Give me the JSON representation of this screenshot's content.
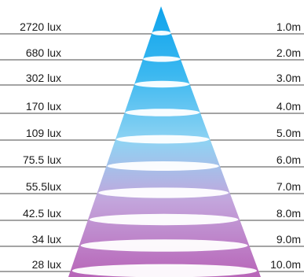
{
  "rows": [
    {
      "lux": "2720 lux",
      "distance": "1.0m"
    },
    {
      "lux": "680 lux",
      "distance": "2.0m"
    },
    {
      "lux": "302 lux",
      "distance": "3.0m"
    },
    {
      "lux": "170 lux",
      "distance": "4.0m"
    },
    {
      "lux": "109 lux",
      "distance": "5.0m"
    },
    {
      "lux": "75.5 lux",
      "distance": "6.0m"
    },
    {
      "lux": "55.5lux",
      "distance": "7.0m"
    },
    {
      "lux": "42.5 lux",
      "distance": "8.0m"
    },
    {
      "lux": "34 lux",
      "distance": "9.0m"
    },
    {
      "lux": "28 lux",
      "distance": "10.0m"
    }
  ],
  "colors": {
    "beam_top": "#0ea3ec",
    "beam_mid": "#8fd3f3",
    "beam_lower": "#c3a5dc",
    "beam_bottom": "#b865b8",
    "ellipse": "#ffffff",
    "line": "#4a4a4a",
    "text": "#1a1a1a"
  }
}
